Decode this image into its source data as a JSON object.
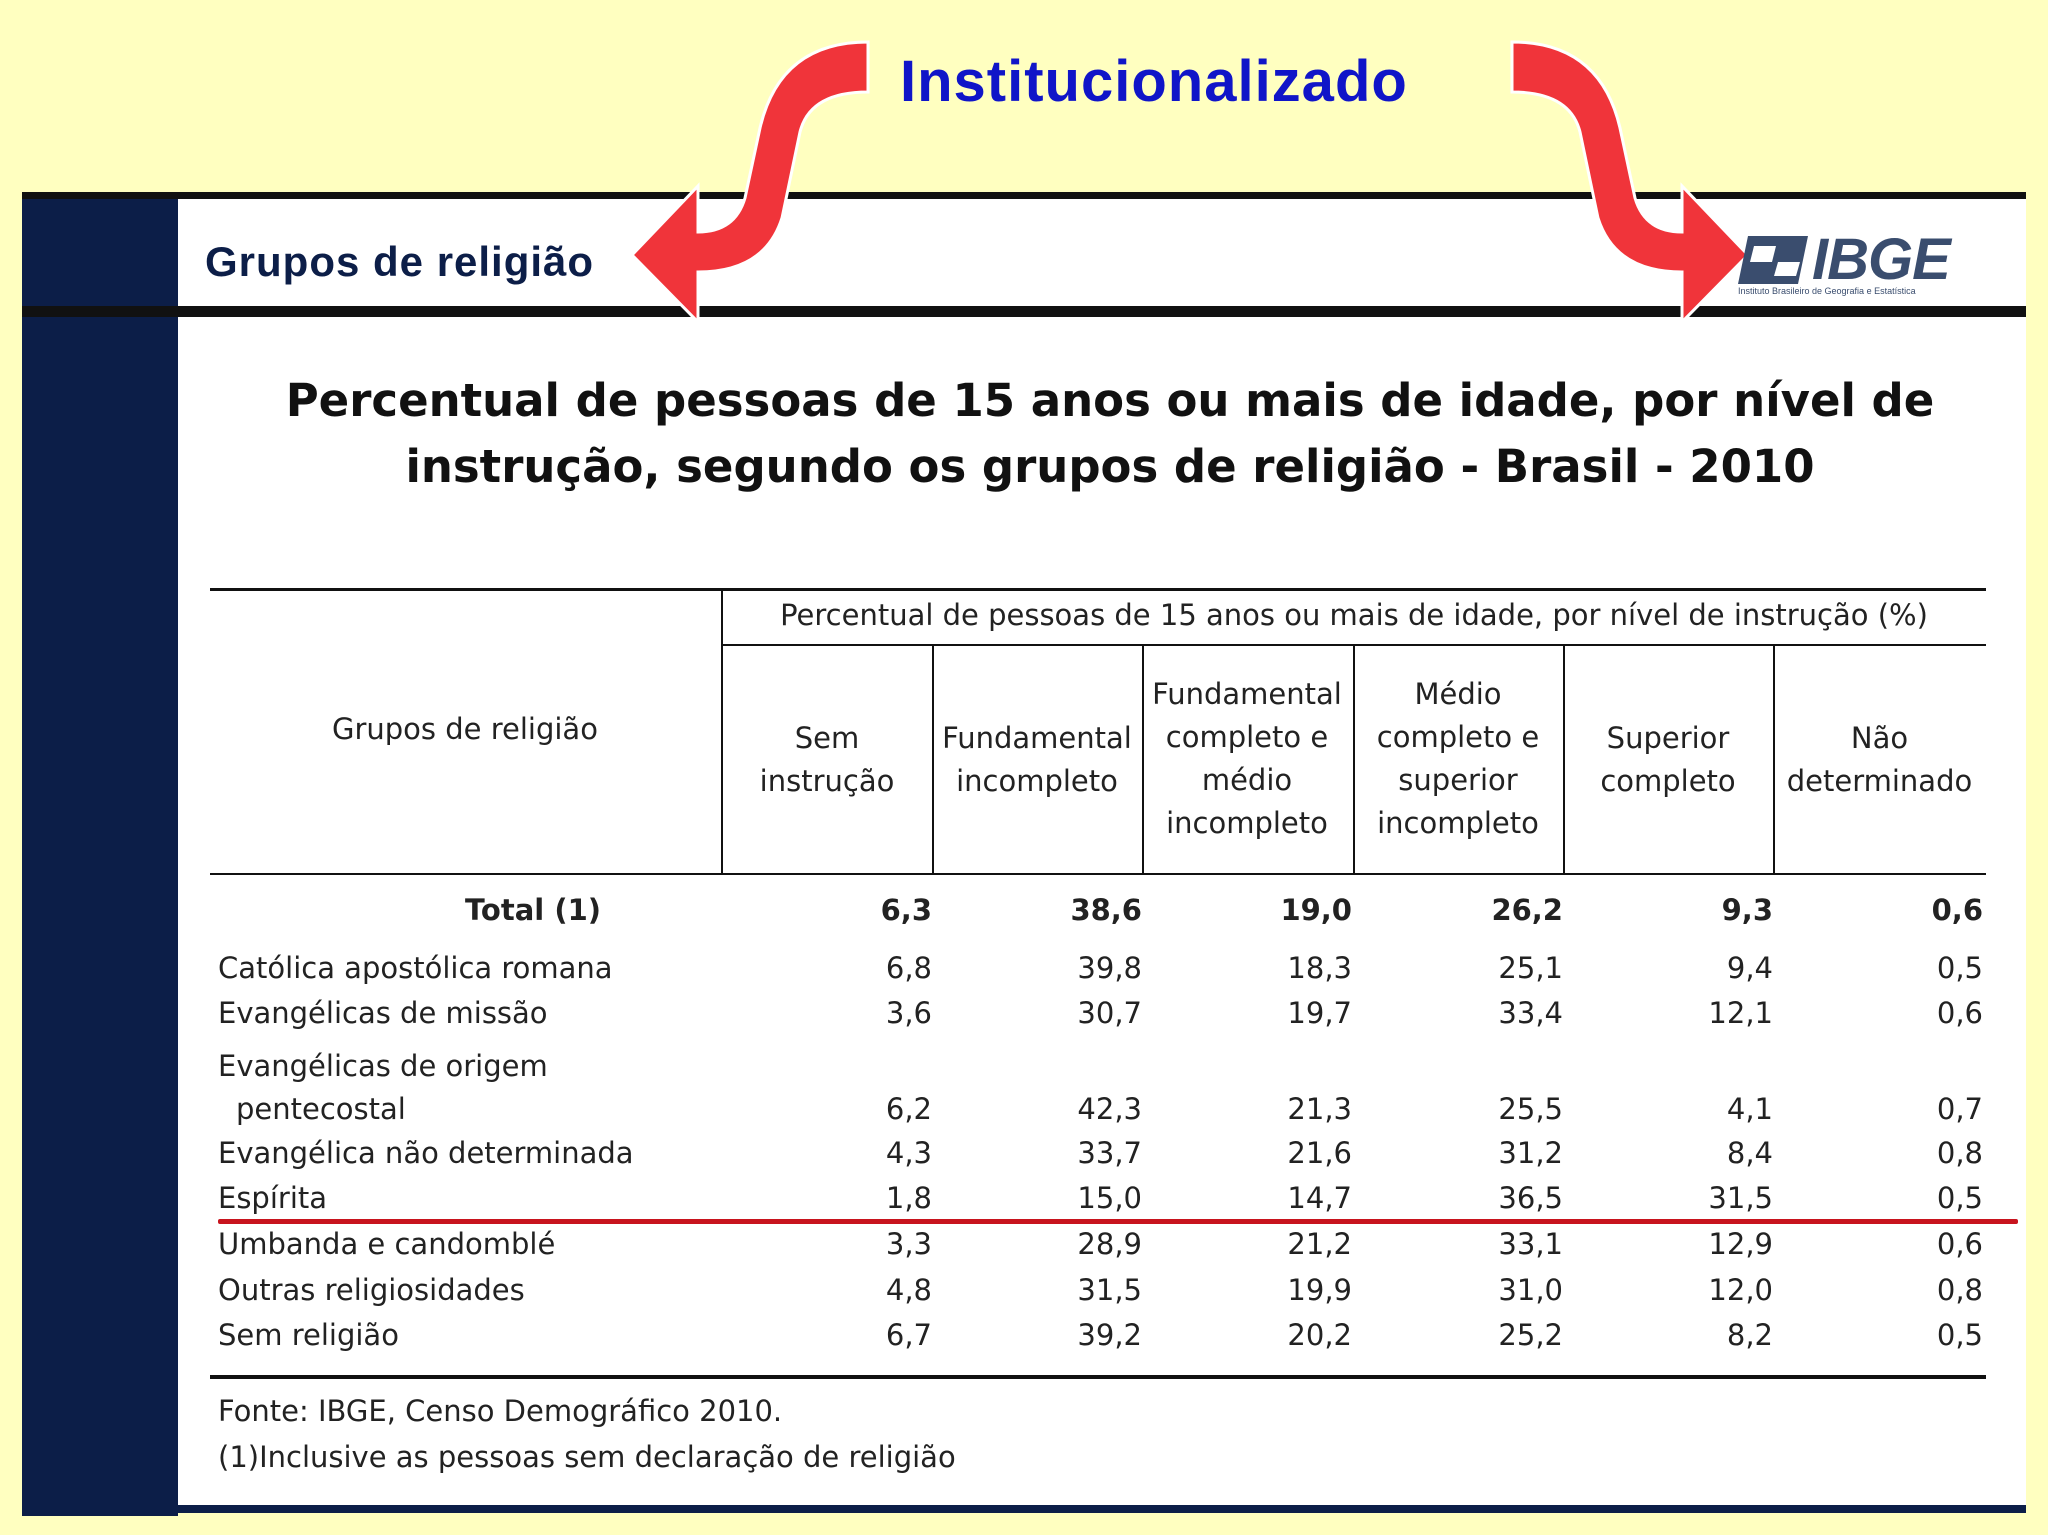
{
  "heading": "Institucionalizado",
  "section_title": "Grupos de religião",
  "logo": {
    "name": "IBGE",
    "subtitle": "Instituto Brasileiro de Geografia e Estatística",
    "color": "#3a4d6e"
  },
  "title_line1": "Percentual de pessoas de 15 anos ou mais de idade, por nível de",
  "title_line2": "instrução, segundo os grupos de religião - Brasil - 2010",
  "table": {
    "row_header": "Grupos de religião",
    "group_header": "Percentual de pessoas de 15 anos ou mais de idade, por nível de instrução (%)",
    "columns": [
      [
        "Sem",
        "instrução"
      ],
      [
        "Fundamental",
        "incompleto"
      ],
      [
        "Fundamental",
        "completo e",
        "médio",
        "incompleto"
      ],
      [
        "Médio",
        "completo e",
        "superior",
        "incompleto"
      ],
      [
        "Superior",
        "completo"
      ],
      [
        "Não",
        "determinado"
      ]
    ],
    "total": {
      "label": "Total (1)",
      "values": [
        "6,3",
        "38,6",
        "19,0",
        "26,2",
        "9,3",
        "0,6"
      ]
    },
    "rows": [
      {
        "label": "Católica apostólica romana",
        "values": [
          "6,8",
          "39,8",
          "18,3",
          "25,1",
          "9,4",
          "0,5"
        ]
      },
      {
        "label": "Evangélicas de missão",
        "values": [
          "3,6",
          "30,7",
          "19,7",
          "33,4",
          "12,1",
          "0,6"
        ]
      },
      {
        "label": "Evangélicas de origem",
        "label2": "pentecostal",
        "values": [
          "6,2",
          "42,3",
          "21,3",
          "25,5",
          "4,1",
          "0,7"
        ]
      },
      {
        "label": "Evangélica não determinada",
        "values": [
          "4,3",
          "33,7",
          "21,6",
          "31,2",
          "8,4",
          "0,8"
        ]
      },
      {
        "label": "Espírita",
        "values": [
          "1,8",
          "15,0",
          "14,7",
          "36,5",
          "31,5",
          "0,5"
        ]
      },
      {
        "label": "Umbanda e candomblé",
        "values": [
          "3,3",
          "28,9",
          "21,2",
          "33,1",
          "12,9",
          "0,6"
        ]
      },
      {
        "label": "Outras religiosidades",
        "values": [
          "4,8",
          "31,5",
          "19,9",
          "31,0",
          "12,0",
          "0,8"
        ]
      },
      {
        "label": "Sem religião",
        "values": [
          "6,7",
          "39,2",
          "20,2",
          "25,2",
          "8,2",
          "0,5"
        ]
      }
    ]
  },
  "source_line1": "Fonte: IBGE, Censo Demográfico 2010.",
  "source_line2": "(1)Inclusive as pessoas sem declaração de religião",
  "colors": {
    "arrow": "#f0343a",
    "heading": "#1015c8",
    "navbar": "#0c1e48",
    "background": "#ffffc0",
    "highlight_line": "#c8141e"
  }
}
